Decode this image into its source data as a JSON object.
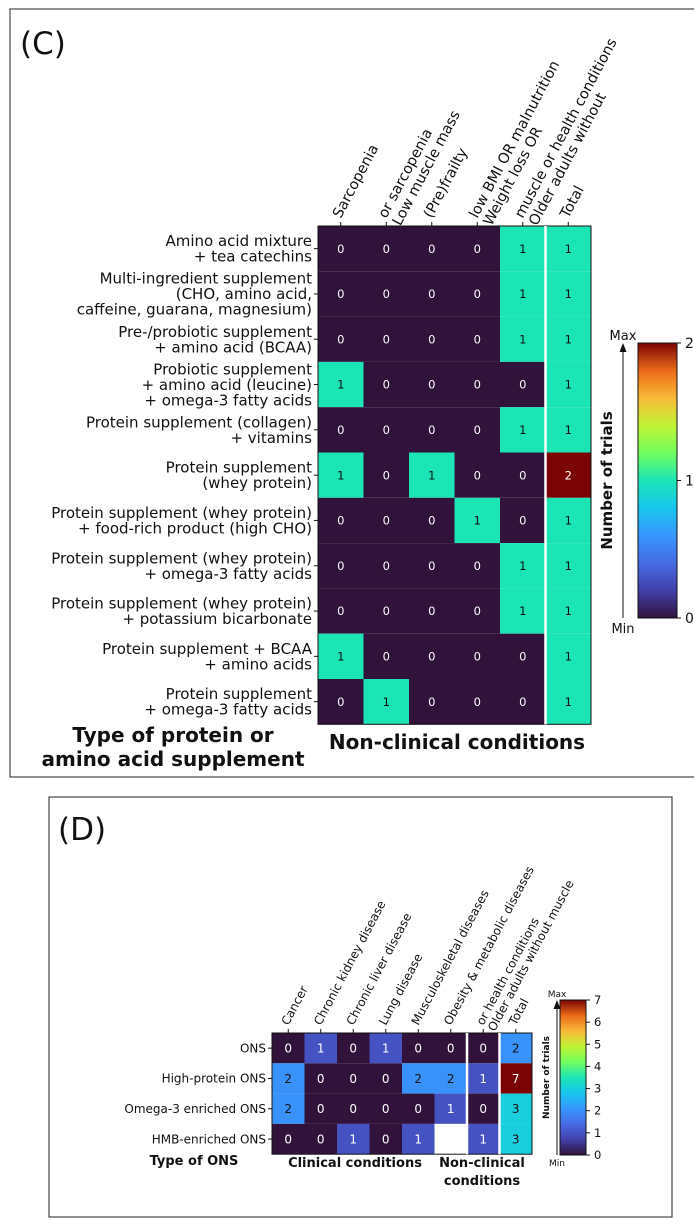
{
  "panels": {
    "c": {
      "letter": "(C)",
      "row_axis_title": [
        "Type of protein or",
        "amino acid supplement"
      ],
      "group_label": "Non-clinical conditions",
      "colorbar": {
        "title": "Number of trials",
        "max_label": "Max",
        "min_label": "Min",
        "ticks": [
          "0",
          "1",
          "2"
        ]
      }
    },
    "d": {
      "letter": "(D)",
      "row_axis_title": "Type of ONS",
      "group_labels": {
        "clinical": "Clinical conditions",
        "nonclinical": [
          "Non-clinical",
          "conditions"
        ]
      },
      "colorbar": {
        "title": "Number of trials",
        "max_label": "Max",
        "min_label": "Min",
        "ticks": [
          "0",
          "1",
          "2",
          "3",
          "4",
          "5",
          "6",
          "7"
        ]
      }
    }
  },
  "chart_data": [
    {
      "type": "heatmap",
      "panel": "(C)",
      "columns": [
        [
          "Sarcopenia"
        ],
        [
          "Low muscle mass",
          "or sarcopenia"
        ],
        [
          "(Pre)frailty"
        ],
        [
          "Weight loss OR",
          "low BMI OR malnutrition"
        ],
        [
          "Older adults without",
          "muscle or health conditions"
        ],
        [
          "Total"
        ]
      ],
      "rows": [
        [
          "Amino acid mixture",
          "+ tea catechins"
        ],
        [
          "Multi-ingredient supplement",
          "(CHO, amino acid,",
          "caffeine, guarana, magnesium)"
        ],
        [
          "Pre-/probiotic supplement",
          "+ amino acid (BCAA)"
        ],
        [
          "Probiotic supplement",
          "+ amino acid (leucine)",
          "+ omega-3 fatty acids"
        ],
        [
          "Protein supplement (collagen)",
          "+ vitamins"
        ],
        [
          "Protein supplement",
          "(whey protein)"
        ],
        [
          "Protein supplement (whey protein)",
          "+ food-rich product (high CHO)"
        ],
        [
          "Protein supplement (whey protein)",
          "+ omega-3 fatty acids"
        ],
        [
          "Protein supplement (whey protein)",
          "+ potassium bicarbonate"
        ],
        [
          "Protein supplement + BCAA",
          "+ amino acids"
        ],
        [
          "Protein supplement",
          "+ omega-3 fatty acids"
        ]
      ],
      "values": [
        [
          0,
          0,
          0,
          0,
          1,
          1
        ],
        [
          0,
          0,
          0,
          0,
          1,
          1
        ],
        [
          0,
          0,
          0,
          0,
          1,
          1
        ],
        [
          1,
          0,
          0,
          0,
          0,
          1
        ],
        [
          0,
          0,
          0,
          0,
          1,
          1
        ],
        [
          1,
          0,
          1,
          0,
          0,
          2
        ],
        [
          0,
          0,
          0,
          1,
          0,
          1
        ],
        [
          0,
          0,
          0,
          0,
          1,
          1
        ],
        [
          0,
          0,
          0,
          0,
          1,
          1
        ],
        [
          1,
          0,
          0,
          0,
          0,
          1
        ],
        [
          0,
          1,
          0,
          0,
          0,
          1
        ]
      ],
      "value_range": [
        0,
        2
      ],
      "colormap": "turbo",
      "separator_before_column": 5
    },
    {
      "type": "heatmap",
      "panel": "(D)",
      "columns": [
        "Cancer",
        "Chronic kidney disease",
        "Chronic liver disease",
        "Lung disease",
        "Musculoskeletal diseases",
        "Obesity & metabolic diseases",
        [
          "Older adults without muscle",
          "or health conditions"
        ],
        "Total"
      ],
      "rows": [
        "ONS",
        "High-protein ONS",
        "Omega-3 enriched ONS",
        "HMB-enriched ONS"
      ],
      "values": [
        [
          0,
          1,
          0,
          1,
          0,
          0,
          0,
          2
        ],
        [
          2,
          0,
          0,
          0,
          2,
          2,
          1,
          7
        ],
        [
          2,
          0,
          0,
          0,
          0,
          1,
          0,
          3
        ],
        [
          0,
          0,
          1,
          0,
          1,
          null,
          1,
          3
        ]
      ],
      "value_range": [
        0,
        7
      ],
      "colormap": "turbo",
      "separators_before_columns": [
        6,
        7
      ]
    }
  ]
}
